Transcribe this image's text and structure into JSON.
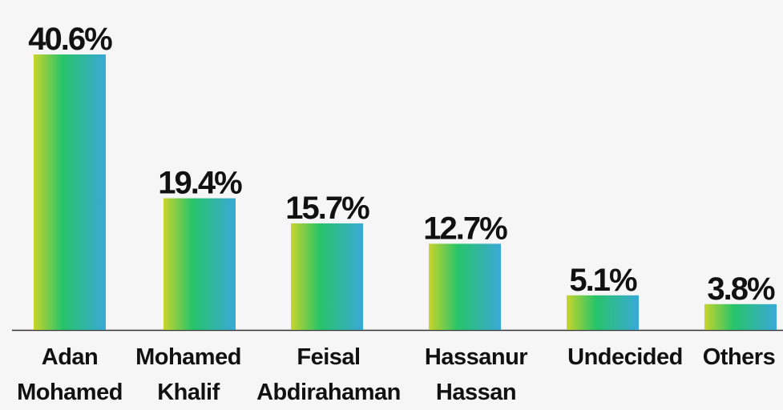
{
  "chart_data": {
    "type": "bar",
    "categories": [
      "Adan Mohamed",
      "Mohamed Khalif",
      "Feisal Abdirahaman",
      "Hassanur Hassan",
      "Undecided",
      "Others"
    ],
    "values": [
      40.6,
      19.4,
      15.7,
      12.7,
      5.1,
      3.8
    ],
    "value_labels": [
      "40.6%",
      "19.4%",
      "15.7%",
      "12.7%",
      "5.1%",
      "3.8%"
    ],
    "colors": [
      "#c8d42a",
      "#27c46a",
      "#3aa8d8"
    ]
  }
}
